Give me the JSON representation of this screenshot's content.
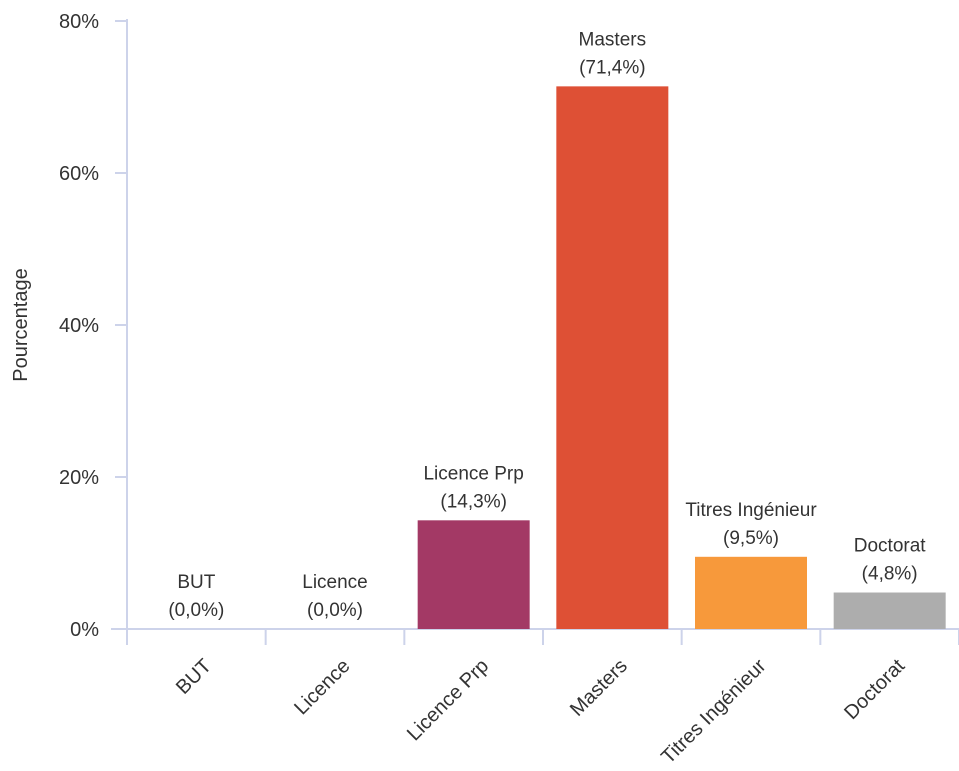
{
  "chart_data": {
    "type": "bar",
    "title": "",
    "xlabel": "",
    "ylabel": "Pourcentage",
    "ylim": [
      0,
      80
    ],
    "yticks": [
      "0%",
      "20%",
      "40%",
      "60%",
      "80%"
    ],
    "categories": [
      "BUT",
      "Licence",
      "Licence Prp",
      "Masters",
      "Titres Ingénieur",
      "Doctorat"
    ],
    "values": [
      0.0,
      0.0,
      14.3,
      71.4,
      9.5,
      4.8
    ],
    "data_labels": [
      "(0,0%)",
      "(0,0%)",
      "(14,3%)",
      "(71,4%)",
      "(9,5%)",
      "(4,8%)"
    ],
    "colors": [
      "#cccccc",
      "#cccccc",
      "#a33965",
      "#de5035",
      "#f7993b",
      "#adadad"
    ],
    "grid": false,
    "legend": "none"
  }
}
